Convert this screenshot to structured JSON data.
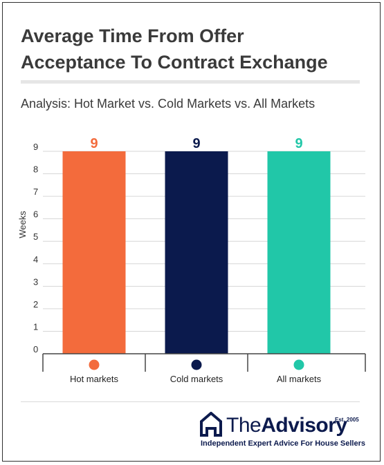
{
  "header": {
    "title_line1": "Average Time From Offer",
    "title_line2": "Acceptance To Contract Exchange",
    "subtitle": "Analysis: Hot Market vs. Cold Markets vs. All Markets"
  },
  "chart_data": {
    "type": "bar",
    "title": "Average Time From Offer Acceptance To Contract Exchange",
    "subtitle": "Analysis: Hot Market vs. Cold Markets vs. All Markets",
    "xlabel": "",
    "ylabel": "Weeks",
    "categories": [
      "Hot markets",
      "Cold markets",
      "All markets"
    ],
    "values": [
      9,
      9,
      9
    ],
    "data_labels": [
      "9",
      "9",
      "9"
    ],
    "colors": [
      "#f36b3c",
      "#0b1a4d",
      "#21c7a8"
    ],
    "ylim": [
      0,
      9
    ],
    "yticks": [
      "0",
      "1",
      "2",
      "3",
      "4",
      "5",
      "6",
      "7",
      "8",
      "9"
    ],
    "grid": true,
    "legend_placement": "bottom"
  },
  "brand": {
    "name_part1": "The",
    "name_part2": "Advisory",
    "est": "Est. 2005",
    "tagline": "Independent Expert Advice For House Sellers",
    "color": "#0c1a4d"
  }
}
